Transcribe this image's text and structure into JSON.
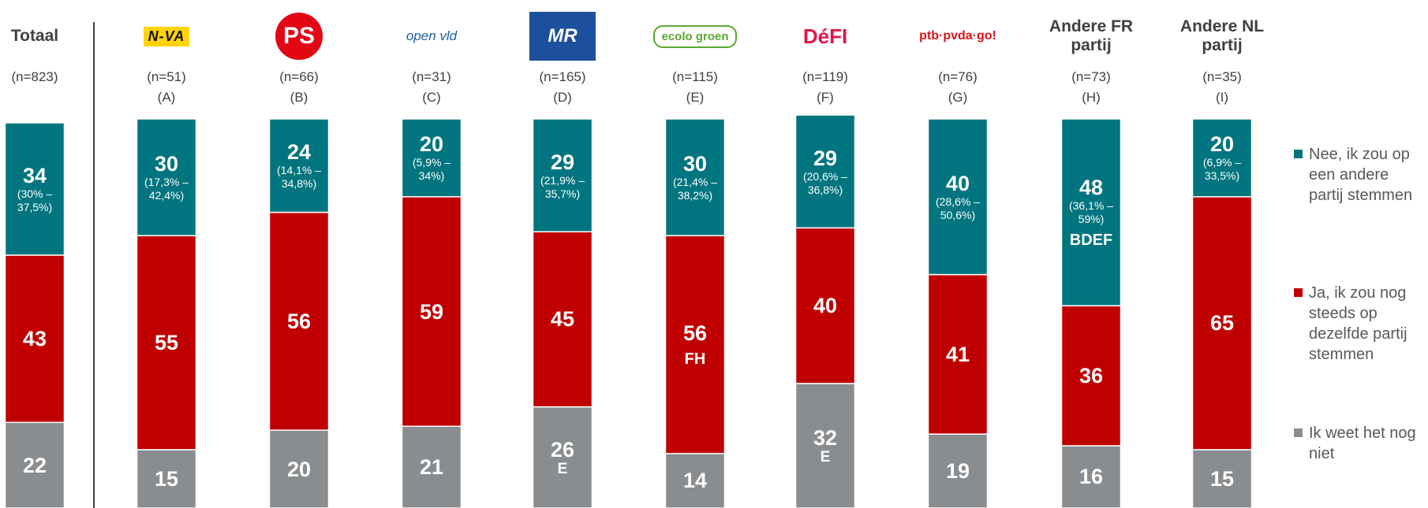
{
  "chart_data": {
    "type": "bar",
    "stacked": true,
    "categories": [
      "Totaal",
      "N-VA",
      "PS",
      "open vld",
      "MR",
      "ecolo groen",
      "DéFI",
      "ptb·pvda·go!",
      "Andere FR partij",
      "Andere NL partij"
    ],
    "sample_sizes": [
      "(n=823)",
      "(n=51)",
      "(n=66)",
      "(n=31)",
      "(n=165)",
      "(n=115)",
      "(n=119)",
      "(n=76)",
      "(n=73)",
      "(n=35)"
    ],
    "group_letters": [
      null,
      "(A)",
      "(B)",
      "(C)",
      "(D)",
      "(E)",
      "(F)",
      "(G)",
      "(H)",
      "(I)"
    ],
    "ylim": [
      0,
      100
    ],
    "legend": "right",
    "series": [
      {
        "name": "Nee, ik zou op een andere partij stemmen",
        "color": "#00757f",
        "values": [
          34,
          30,
          24,
          20,
          29,
          30,
          29,
          40,
          48,
          20
        ],
        "interval_labels": [
          "(30% – 37,5%)",
          "(17,3% – 42,4%)",
          "(14,1% – 34,8%)",
          "(5,9% – 34%)",
          "(21,9% – 35,7%)",
          "(21,4% – 38,2%)",
          "(20,6% – 36,8%)",
          "(28,6% – 50,6%)",
          "(36,1% – 59%)",
          "(6,9% – 33,5%)"
        ],
        "annotations": [
          null,
          null,
          null,
          null,
          null,
          null,
          null,
          null,
          "BDEF",
          null
        ]
      },
      {
        "name": "Ja, ik zou nog steeds op dezelfde partij stemmen",
        "color": "#c00000",
        "values": [
          43,
          55,
          56,
          59,
          45,
          56,
          40,
          41,
          36,
          65
        ],
        "annotations": [
          null,
          null,
          null,
          null,
          null,
          "FH",
          null,
          null,
          null,
          null
        ]
      },
      {
        "name": "Ik weet het nog niet",
        "color": "#8a8d8f",
        "values": [
          22,
          15,
          20,
          21,
          26,
          14,
          32,
          19,
          16,
          15
        ],
        "annotations": [
          null,
          null,
          null,
          null,
          "E",
          null,
          "E",
          null,
          null,
          null
        ]
      }
    ]
  }
}
